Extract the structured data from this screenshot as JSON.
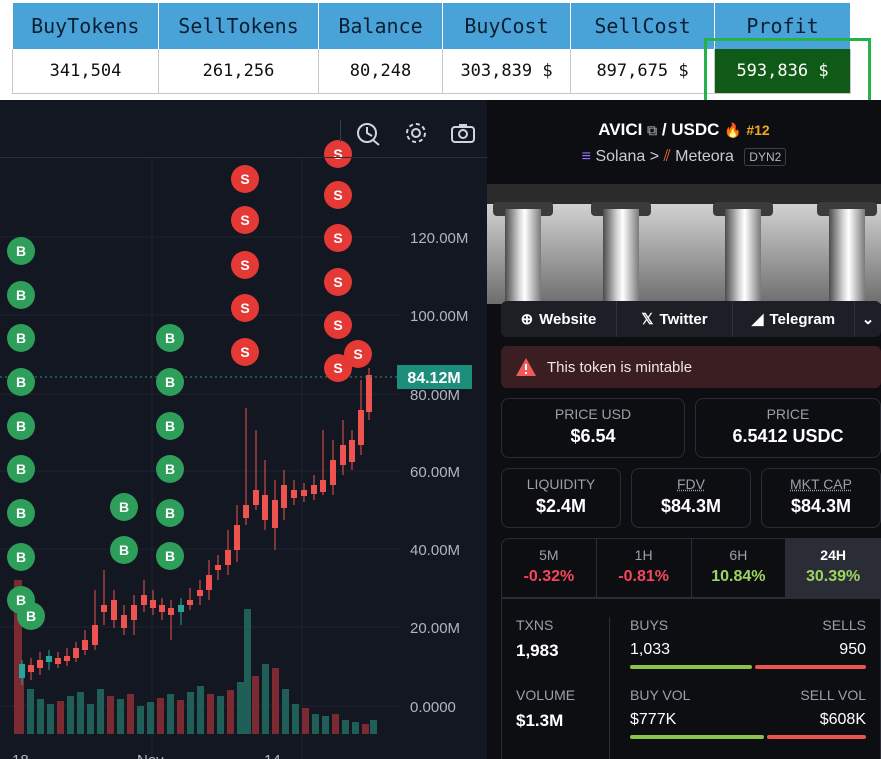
{
  "summary": {
    "headers": [
      "BuyTokens",
      "SellTokens",
      "Balance",
      "BuyCost",
      "SellCost",
      "Profit"
    ],
    "values": [
      "341,504",
      "261,256",
      "80,248",
      "303,839 $",
      "897,675 $",
      "593,836 $"
    ]
  },
  "chart": {
    "price_label": "84.12M",
    "y_ticks": [
      "120.00M",
      "100.00M",
      "80.00M",
      "60.00M",
      "40.00M",
      "20.00M",
      "0.0000"
    ],
    "x_ticks": [
      "18",
      "Nov",
      "14"
    ],
    "buy_marker": "B",
    "sell_marker": "S",
    "colors": {
      "up": "#26a69a",
      "down": "#ef5350",
      "buy": "#2e9e5b",
      "sell": "#e53935"
    }
  },
  "token": {
    "base": "AVICI",
    "quote": "USDC",
    "separator": "/",
    "rank": "#12",
    "chain": "Solana",
    "dex": "Meteora",
    "pool_type": "DYN2",
    "links": [
      "Website",
      "Twitter",
      "Telegram"
    ],
    "alert": "This token is mintable",
    "price_usd": {
      "label": "PRICE USD",
      "value": "$6.54"
    },
    "price": {
      "label": "PRICE",
      "value": "6.5412 USDC"
    },
    "liquidity": {
      "label": "LIQUIDITY",
      "value": "$2.4M"
    },
    "fdv": {
      "label": "FDV",
      "value": "$84.3M"
    },
    "mkt_cap": {
      "label": "MKT CAP",
      "value": "$84.3M"
    },
    "periods": [
      {
        "label": "5M",
        "value": "-0.32%"
      },
      {
        "label": "1H",
        "value": "-0.81%"
      },
      {
        "label": "6H",
        "value": "10.84%"
      },
      {
        "label": "24H",
        "value": "30.39%"
      }
    ],
    "txns": {
      "label": "TXNS",
      "value": "1,983"
    },
    "buys": {
      "label": "BUYS",
      "value": "1,033"
    },
    "sells": {
      "label": "SELLS",
      "value": "950"
    },
    "volume": {
      "label": "VOLUME",
      "value": "$1.3M"
    },
    "buy_vol": {
      "label": "BUY VOL",
      "value": "$777K"
    },
    "sell_vol": {
      "label": "SELL VOL",
      "value": "$608K"
    },
    "colors": {
      "buy_bar": "#8bc34a",
      "sell_bar": "#ef5350",
      "rank": "#f5a524"
    }
  }
}
